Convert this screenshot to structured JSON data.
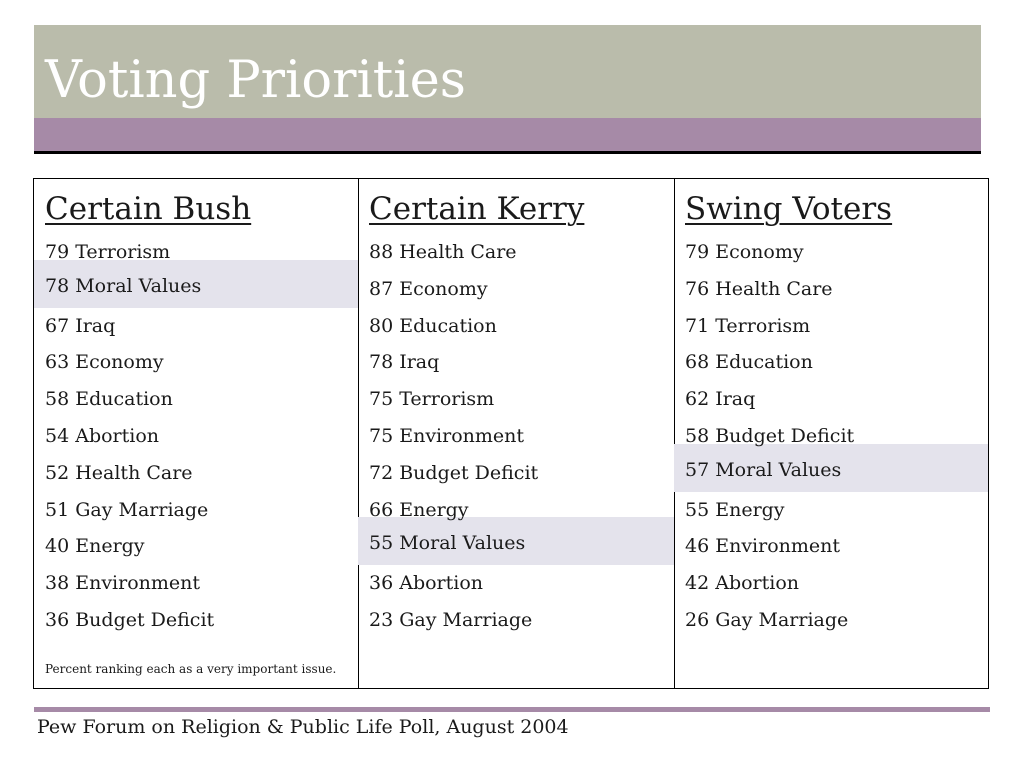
{
  "slide": {
    "title": "Voting Priorities",
    "source": "Pew Forum on Religion & Public Life Poll, August 2004",
    "footnote": "Percent ranking each as a very important issue."
  },
  "columns": [
    {
      "heading": "Certain Bush",
      "items": [
        "79 Terrorism",
        "78 Moral Values",
        "67 Iraq",
        "63 Economy",
        "58 Education",
        "54 Abortion",
        "52 Health Care",
        "51 Gay Marriage",
        "40 Energy",
        "38 Environment",
        "36 Budget Deficit"
      ],
      "highlighted_index": 1
    },
    {
      "heading": "Certain Kerry",
      "items": [
        "88 Health Care",
        "87 Economy",
        "80 Education",
        "78 Iraq",
        "75 Terrorism",
        "75 Environment",
        "72 Budget Deficit",
        "66 Energy",
        "55 Moral Values",
        "36 Abortion",
        "23 Gay Marriage"
      ],
      "highlighted_index": 8
    },
    {
      "heading": "Swing Voters",
      "items": [
        "79 Economy",
        "76 Health Care",
        "71 Terrorism",
        "68 Education",
        "62 Iraq",
        "58 Budget Deficit",
        "57 Moral Values",
        "55 Energy",
        "46 Environment",
        "42 Abortion",
        "26 Gay Marriage"
      ],
      "highlighted_index": 6
    }
  ],
  "colors": {
    "title_bar": "#babcab",
    "accent_bar": "#a68aa7",
    "highlight": "#e4e3ec"
  }
}
